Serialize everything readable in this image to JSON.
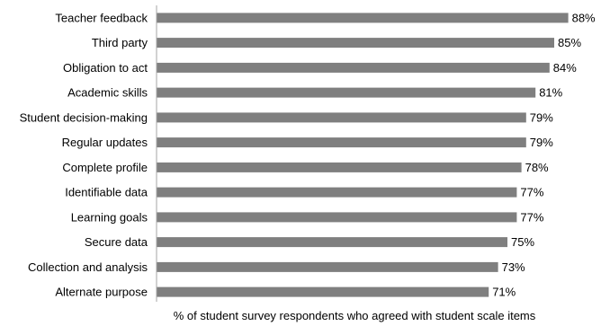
{
  "chart_data": {
    "type": "bar",
    "orientation": "horizontal",
    "categories": [
      "Teacher feedback",
      "Third party",
      "Obligation to act",
      "Academic skills",
      "Student decision-making",
      "Regular updates",
      "Complete profile",
      "Identifiable data",
      "Learning goals",
      "Secure data",
      "Collection and analysis",
      "Alternate purpose"
    ],
    "values": [
      88,
      85,
      84,
      81,
      79,
      79,
      78,
      77,
      77,
      75,
      73,
      71
    ],
    "value_labels": [
      "88%",
      "85%",
      "84%",
      "81%",
      "79%",
      "79%",
      "78%",
      "77%",
      "77%",
      "75%",
      "73%",
      "71%"
    ],
    "xlabel": "% of student survey respondents who agreed with student scale items",
    "xlim": [
      0,
      100
    ],
    "bar_color": "#7f7f7f",
    "grid": false
  }
}
